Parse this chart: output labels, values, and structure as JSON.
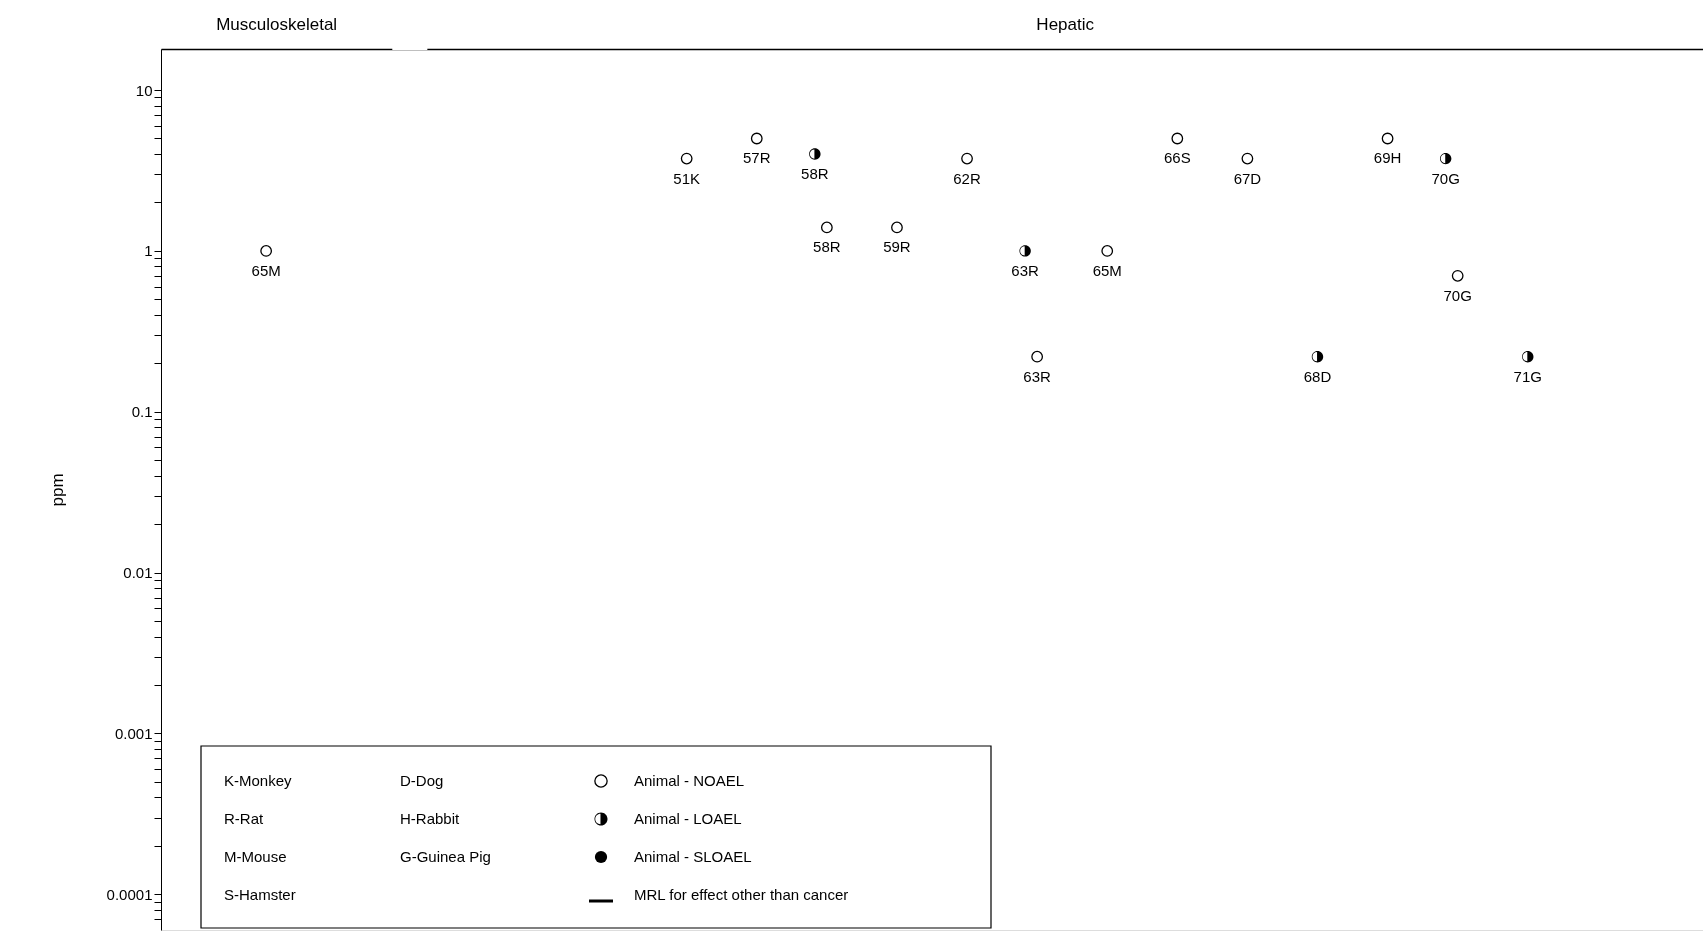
{
  "chart_data": {
    "type": "scatter",
    "ylabel": "ppm",
    "log": "y",
    "grid": false,
    "legend": "bottom left",
    "tick_labels": "y",
    "marker": "circle",
    "categories": [
      null,
      null,
      null,
      null,
      null,
      null,
      null,
      null,
      null,
      null,
      null,
      null,
      null,
      null,
      null,
      null,
      null,
      null,
      null,
      null,
      null,
      null
    ],
    "ylim": [
      6e-05,
      18
    ],
    "yticks": [
      {
        "value": 7e-05,
        "label": null
      },
      {
        "value": 8e-05,
        "label": null
      },
      {
        "value": 9e-05,
        "label": null
      },
      0.0001,
      {
        "value": 0.0002,
        "label": null
      },
      {
        "value": 0.0003,
        "label": null
      },
      {
        "value": 0.0004,
        "label": null
      },
      {
        "value": 0.0005,
        "label": null
      },
      {
        "value": 0.0006,
        "label": null
      },
      {
        "value": 0.0007,
        "label": null
      },
      {
        "value": 0.0008,
        "label": null
      },
      {
        "value": 0.0009,
        "label": null
      },
      0.001,
      {
        "value": 0.002,
        "label": null
      },
      {
        "value": 0.003,
        "label": null
      },
      {
        "value": 0.004,
        "label": null
      },
      {
        "value": 0.005,
        "label": null
      },
      {
        "value": 0.006,
        "label": null
      },
      {
        "value": 0.007,
        "label": null
      },
      {
        "value": 0.008,
        "label": null
      },
      {
        "value": 0.009,
        "label": null
      },
      0.01,
      {
        "value": 0.02,
        "label": null
      },
      {
        "value": 0.03,
        "label": null
      },
      {
        "value": 0.04,
        "label": null
      },
      {
        "value": 0.05,
        "label": null
      },
      {
        "value": 0.06,
        "label": null
      },
      {
        "value": 0.07,
        "label": null
      },
      {
        "value": 0.08,
        "label": null
      },
      {
        "value": 0.09,
        "label": null
      },
      0.1,
      {
        "value": 0.2,
        "label": null
      },
      {
        "value": 0.3,
        "label": null
      },
      {
        "value": 0.4,
        "label": null
      },
      {
        "value": 0.5,
        "label": null
      },
      {
        "value": 0.6,
        "label": null
      },
      {
        "value": 0.7,
        "label": null
      },
      {
        "value": 0.8,
        "label": null
      },
      {
        "value": 0.9,
        "label": null
      },
      1,
      {
        "value": 2,
        "label": null
      },
      {
        "value": 3,
        "label": null
      },
      {
        "value": 4,
        "label": null
      },
      {
        "value": 5,
        "label": null
      },
      {
        "value": 6,
        "label": null
      },
      {
        "value": 7,
        "label": null
      },
      {
        "value": 8,
        "label": null
      },
      {
        "value": 9,
        "label": null
      },
      10
    ],
    "series": [
      {
        "name": "Animal - NOAEL",
        "color": "#000000",
        "values": [
          null,
          1,
          null,
          null,
          null,
          null,
          null,
          3.75,
          5,
          1.4,
          1.4,
          3.75,
          0.22,
          1,
          5,
          3.75,
          null,
          5,
          0.7,
          null,
          null,
          null
        ]
      },
      {
        "name": "Animal - LOAEL",
        "color": "#000000",
        "values": [
          null,
          null,
          null,
          null,
          null,
          null,
          null,
          null,
          null,
          4,
          null,
          null,
          1,
          null,
          null,
          null,
          0.22,
          null,
          3.75,
          0.22,
          null,
          null
        ]
      },
      {
        "name": "Animal - SLOAEL",
        "color": "#000000",
        "values": [
          null,
          null,
          null,
          null,
          null,
          null,
          null,
          null,
          null,
          null,
          null,
          null,
          null,
          null,
          null,
          null,
          null,
          null,
          null,
          null,
          null,
          null
        ]
      },
      {
        "name": "MRL for effect other than cancer",
        "color": "#000000",
        "type": "line",
        "values": [
          null,
          null,
          null,
          null,
          null,
          null,
          null,
          null,
          null,
          null,
          null,
          null,
          null,
          null,
          null,
          null,
          null,
          null,
          null,
          null,
          null,
          null
        ]
      }
    ],
    "annotations": [
      "Musculoskeletal",
      "Hepatic",
      "K-Monkey",
      "R-Rat",
      "M-Mouse",
      "S-Hamster",
      "D-Dog",
      "H-Rabbit",
      "G-Guinea Pig",
      "65M",
      "51K",
      "57R",
      "58R",
      "59R",
      "62R",
      "63R",
      "65M",
      "66S",
      "67D",
      "69H",
      "70G",
      "58R",
      "63R",
      "68D",
      "70G",
      "71G"
    ]
  }
}
